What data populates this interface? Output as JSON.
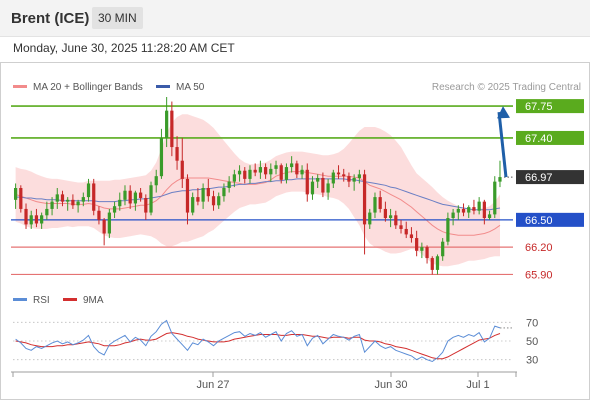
{
  "header": {
    "title": "Brent (ICE)",
    "timeframe": "30 MIN",
    "datetime": "Monday, June 30, 2025 11:28:20 AM CET"
  },
  "legend": {
    "items": [
      {
        "label": "MA 20 + Bollinger Bands",
        "color": "#f28b8b"
      },
      {
        "label": "MA 50",
        "color": "#3b5ba9"
      }
    ],
    "copyright": "Research © 2025 Trading Central"
  },
  "colors": {
    "up_candle": "#3a9b2a",
    "down_candle": "#c62828",
    "resistance": "#5aab1e",
    "support": "#2450c8",
    "lower_support": "#e57373",
    "bollinger_fill": "#fbd7d7",
    "ma20": "#f28b8b",
    "ma50": "#6b7fc4",
    "arrow": "#1f5fa8",
    "rsi": "#5b8dd6",
    "rsi_ma": "#d32f2f"
  },
  "chart_data": [
    {
      "type": "candlestick",
      "x_ticks": [
        "Jun 27",
        "Jun 30",
        "Jul 1"
      ],
      "y_range": [
        65.85,
        67.85
      ],
      "levels": [
        {
          "value": 67.75,
          "label": "67.75",
          "kind": "resistance"
        },
        {
          "value": 67.4,
          "label": "67.40",
          "kind": "resistance"
        },
        {
          "value": 66.97,
          "label": "66.97",
          "kind": "last_price"
        },
        {
          "value": 66.5,
          "label": "66.50",
          "kind": "pivot"
        },
        {
          "value": 66.2,
          "label": "66.20",
          "kind": "support"
        },
        {
          "value": 65.9,
          "label": "65.90",
          "kind": "support"
        }
      ],
      "candles": [
        [
          66.72,
          66.9,
          66.62,
          66.85
        ],
        [
          66.85,
          66.88,
          66.58,
          66.62
        ],
        [
          66.62,
          66.68,
          66.4,
          66.45
        ],
        [
          66.45,
          66.6,
          66.4,
          66.55
        ],
        [
          66.55,
          66.62,
          66.42,
          66.46
        ],
        [
          66.46,
          66.58,
          66.4,
          66.55
        ],
        [
          66.55,
          66.7,
          66.5,
          66.62
        ],
        [
          66.62,
          66.75,
          66.55,
          66.7
        ],
        [
          66.7,
          66.85,
          66.62,
          66.78
        ],
        [
          66.78,
          66.82,
          66.65,
          66.7
        ],
        [
          66.7,
          66.75,
          66.6,
          66.72
        ],
        [
          66.72,
          66.78,
          66.62,
          66.66
        ],
        [
          66.66,
          66.72,
          66.58,
          66.7
        ],
        [
          66.7,
          66.8,
          66.65,
          66.75
        ],
        [
          66.75,
          66.95,
          66.7,
          66.9
        ],
        [
          66.9,
          66.95,
          66.55,
          66.6
        ],
        [
          66.6,
          66.65,
          66.45,
          66.5
        ],
        [
          66.5,
          66.52,
          66.22,
          66.35
        ],
        [
          66.35,
          66.62,
          66.3,
          66.58
        ],
        [
          66.58,
          66.7,
          66.52,
          66.65
        ],
        [
          66.65,
          66.8,
          66.6,
          66.72
        ],
        [
          66.72,
          66.88,
          66.66,
          66.82
        ],
        [
          66.82,
          66.88,
          66.62,
          66.68
        ],
        [
          66.68,
          66.82,
          66.6,
          66.8
        ],
        [
          66.8,
          66.85,
          66.7,
          66.74
        ],
        [
          66.74,
          66.78,
          66.5,
          66.58
        ],
        [
          66.58,
          66.92,
          66.55,
          66.88
        ],
        [
          66.88,
          67.05,
          66.8,
          66.98
        ],
        [
          66.98,
          67.5,
          66.95,
          67.4
        ],
        [
          67.4,
          67.85,
          67.3,
          67.7
        ],
        [
          67.7,
          67.8,
          67.2,
          67.3
        ],
        [
          67.3,
          67.42,
          67.05,
          67.15
        ],
        [
          67.15,
          67.4,
          66.85,
          66.95
        ],
        [
          66.95,
          67.0,
          66.45,
          66.58
        ],
        [
          66.58,
          66.8,
          66.55,
          66.75
        ],
        [
          66.75,
          66.85,
          66.66,
          66.7
        ],
        [
          66.7,
          66.9,
          66.62,
          66.85
        ],
        [
          66.85,
          66.95,
          66.7,
          66.76
        ],
        [
          66.76,
          66.82,
          66.6,
          66.66
        ],
        [
          66.66,
          66.8,
          66.62,
          66.76
        ],
        [
          66.76,
          66.9,
          66.7,
          66.85
        ],
        [
          66.85,
          66.98,
          66.8,
          66.92
        ],
        [
          66.92,
          67.05,
          66.86,
          67.0
        ],
        [
          67.0,
          67.1,
          66.92,
          67.04
        ],
        [
          67.04,
          67.08,
          66.9,
          66.95
        ],
        [
          66.95,
          67.1,
          66.9,
          67.05
        ],
        [
          67.05,
          67.12,
          66.98,
          67.02
        ],
        [
          67.02,
          67.15,
          66.95,
          67.08
        ],
        [
          67.08,
          67.12,
          66.95,
          67.0
        ],
        [
          67.0,
          67.12,
          66.92,
          67.06
        ],
        [
          67.06,
          67.15,
          67.0,
          67.1
        ],
        [
          67.1,
          67.12,
          66.9,
          66.94
        ],
        [
          66.94,
          67.12,
          66.9,
          67.08
        ],
        [
          67.08,
          67.2,
          67.02,
          67.12
        ],
        [
          67.12,
          67.15,
          66.96,
          67.0
        ],
        [
          67.0,
          67.1,
          66.95,
          67.05
        ],
        [
          67.05,
          67.12,
          66.7,
          66.78
        ],
        [
          66.78,
          66.98,
          66.72,
          66.92
        ],
        [
          66.92,
          67.0,
          66.85,
          66.96
        ],
        [
          66.96,
          67.02,
          66.75,
          66.8
        ],
        [
          66.8,
          66.95,
          66.72,
          66.9
        ],
        [
          66.9,
          67.05,
          66.85,
          67.02
        ],
        [
          67.02,
          67.1,
          66.95,
          67.0
        ],
        [
          67.0,
          67.06,
          66.92,
          66.98
        ],
        [
          66.98,
          67.02,
          66.86,
          66.92
        ],
        [
          66.92,
          67.0,
          66.82,
          66.96
        ],
        [
          66.96,
          67.05,
          66.9,
          67.0
        ],
        [
          67.0,
          67.05,
          66.12,
          66.45
        ],
        [
          66.45,
          66.62,
          66.4,
          66.58
        ],
        [
          66.58,
          66.8,
          66.52,
          66.75
        ],
        [
          66.75,
          66.82,
          66.58,
          66.62
        ],
        [
          66.62,
          66.7,
          66.48,
          66.52
        ],
        [
          66.52,
          66.62,
          66.42,
          66.55
        ],
        [
          66.55,
          66.6,
          66.4,
          66.44
        ],
        [
          66.44,
          66.5,
          66.35,
          66.4
        ],
        [
          66.4,
          66.48,
          66.3,
          66.34
        ],
        [
          66.34,
          66.42,
          66.25,
          66.3
        ],
        [
          66.3,
          66.38,
          66.1,
          66.16
        ],
        [
          66.16,
          66.25,
          66.08,
          66.2
        ],
        [
          66.2,
          66.22,
          66.02,
          66.08
        ],
        [
          66.08,
          66.1,
          65.9,
          65.95
        ],
        [
          65.95,
          66.12,
          65.9,
          66.1
        ],
        [
          66.1,
          66.3,
          66.05,
          66.26
        ],
        [
          66.26,
          66.58,
          66.22,
          66.52
        ],
        [
          66.52,
          66.62,
          66.44,
          66.58
        ],
        [
          66.58,
          66.66,
          66.5,
          66.62
        ],
        [
          66.62,
          66.68,
          66.54,
          66.58
        ],
        [
          66.58,
          66.66,
          66.52,
          66.64
        ],
        [
          66.64,
          66.72,
          66.56,
          66.6
        ],
        [
          66.6,
          66.75,
          66.56,
          66.7
        ],
        [
          66.7,
          66.72,
          66.45,
          66.52
        ],
        [
          66.52,
          66.6,
          66.5,
          66.56
        ],
        [
          66.56,
          66.98,
          66.52,
          66.92
        ],
        [
          66.92,
          67.15,
          66.86,
          66.97
        ]
      ],
      "ma20": [
        66.78,
        66.76,
        66.74,
        66.72,
        66.7,
        66.69,
        66.68,
        66.68,
        66.68,
        66.68,
        66.68,
        66.67,
        66.67,
        66.67,
        66.68,
        66.67,
        66.65,
        66.63,
        66.62,
        66.62,
        66.62,
        66.63,
        66.64,
        66.65,
        66.66,
        66.66,
        66.68,
        66.71,
        66.76,
        66.83,
        66.89,
        66.93,
        66.96,
        66.96,
        66.96,
        66.96,
        66.96,
        66.96,
        66.95,
        66.94,
        66.93,
        66.92,
        66.91,
        66.9,
        66.89,
        66.89,
        66.89,
        66.9,
        66.91,
        66.94,
        66.98,
        67.0,
        67.02,
        67.03,
        67.03,
        67.03,
        67.02,
        67.01,
        67.0,
        66.99,
        66.98,
        66.98,
        66.98,
        66.98,
        66.98,
        66.97,
        66.96,
        66.92,
        66.88,
        66.86,
        66.84,
        66.81,
        66.78,
        66.75,
        66.72,
        66.68,
        66.64,
        66.59,
        66.54,
        66.49,
        66.44,
        66.4,
        66.37,
        66.35,
        66.34,
        66.33,
        66.33,
        66.33,
        66.33,
        66.34,
        66.35,
        66.37,
        66.4,
        66.44
      ],
      "ma50": [
        66.75,
        66.75,
        66.74,
        66.74,
        66.73,
        66.73,
        66.72,
        66.72,
        66.72,
        66.71,
        66.71,
        66.71,
        66.71,
        66.71,
        66.71,
        66.71,
        66.7,
        66.7,
        66.7,
        66.7,
        66.71,
        66.71,
        66.72,
        66.72,
        66.73,
        66.73,
        66.74,
        66.75,
        66.76,
        66.78,
        66.8,
        66.81,
        66.82,
        66.82,
        66.83,
        66.83,
        66.84,
        66.84,
        66.85,
        66.86,
        66.86,
        66.87,
        66.88,
        66.89,
        66.89,
        66.9,
        66.9,
        66.91,
        66.92,
        66.92,
        66.93,
        66.93,
        66.94,
        66.94,
        66.95,
        66.95,
        66.95,
        66.95,
        66.95,
        66.95,
        66.95,
        66.95,
        66.95,
        66.95,
        66.94,
        66.94,
        66.93,
        66.92,
        66.91,
        66.9,
        66.89,
        66.88,
        66.86,
        66.85,
        66.83,
        66.81,
        66.79,
        66.77,
        66.75,
        66.73,
        66.71,
        66.69,
        66.67,
        66.66,
        66.65,
        66.64,
        66.63,
        66.62,
        66.61,
        66.61,
        66.61,
        66.61,
        66.62,
        66.63
      ],
      "bb_width": [
        0.3,
        0.3,
        0.31,
        0.31,
        0.3,
        0.29,
        0.28,
        0.27,
        0.27,
        0.26,
        0.25,
        0.25,
        0.24,
        0.24,
        0.25,
        0.26,
        0.28,
        0.3,
        0.31,
        0.32,
        0.32,
        0.32,
        0.32,
        0.32,
        0.32,
        0.33,
        0.36,
        0.42,
        0.52,
        0.62,
        0.68,
        0.7,
        0.7,
        0.7,
        0.68,
        0.66,
        0.64,
        0.6,
        0.56,
        0.5,
        0.44,
        0.38,
        0.32,
        0.27,
        0.24,
        0.22,
        0.22,
        0.22,
        0.22,
        0.22,
        0.22,
        0.22,
        0.22,
        0.22,
        0.22,
        0.22,
        0.22,
        0.22,
        0.22,
        0.22,
        0.23,
        0.24,
        0.26,
        0.3,
        0.36,
        0.44,
        0.52,
        0.6,
        0.64,
        0.66,
        0.66,
        0.66,
        0.65,
        0.62,
        0.58,
        0.52,
        0.46,
        0.42,
        0.42,
        0.42,
        0.42,
        0.4,
        0.38,
        0.36,
        0.34,
        0.32,
        0.3,
        0.28,
        0.28,
        0.28,
        0.28,
        0.28,
        0.3,
        0.34
      ],
      "arrow": {
        "from": 66.97,
        "to": 67.75
      }
    },
    {
      "type": "line",
      "legend": [
        "RSI",
        "9MA"
      ],
      "y_ticks": [
        70,
        50,
        30
      ],
      "y_range": [
        20,
        80
      ],
      "rsi": [
        52,
        48,
        42,
        40,
        44,
        42,
        45,
        48,
        50,
        47,
        49,
        46,
        48,
        51,
        56,
        44,
        38,
        35,
        46,
        50,
        53,
        56,
        49,
        54,
        51,
        45,
        55,
        60,
        68,
        72,
        58,
        52,
        46,
        40,
        48,
        46,
        52,
        49,
        45,
        50,
        53,
        56,
        59,
        60,
        55,
        58,
        56,
        59,
        54,
        57,
        60,
        50,
        58,
        61,
        55,
        57,
        45,
        53,
        56,
        47,
        52,
        57,
        55,
        54,
        51,
        55,
        57,
        38,
        44,
        50,
        45,
        42,
        44,
        40,
        38,
        36,
        34,
        30,
        33,
        30,
        28,
        32,
        38,
        50,
        54,
        56,
        54,
        57,
        55,
        59,
        49,
        53,
        66,
        64
      ],
      "rsi_ma": [
        50,
        49,
        48,
        46,
        45,
        44,
        44,
        44,
        45,
        45,
        46,
        46,
        47,
        48,
        49,
        48,
        47,
        45,
        45,
        45,
        46,
        48,
        49,
        51,
        52,
        51,
        51,
        52,
        55,
        58,
        59,
        58,
        57,
        55,
        54,
        52,
        51,
        50,
        49,
        49,
        49,
        50,
        52,
        53,
        54,
        55,
        56,
        57,
        57,
        57,
        57,
        56,
        56,
        57,
        57,
        57,
        56,
        55,
        55,
        54,
        53,
        54,
        54,
        54,
        53,
        54,
        54,
        51,
        50,
        50,
        49,
        47,
        46,
        44,
        43,
        42,
        40,
        38,
        36,
        34,
        32,
        31,
        31,
        33,
        36,
        39,
        42,
        45,
        48,
        51,
        52,
        53,
        56,
        58
      ]
    }
  ]
}
